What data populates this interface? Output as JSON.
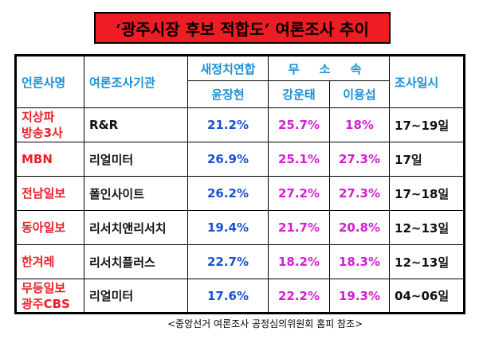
{
  "title": "‘광주시장 후보 적합도’ 여론조사 추이",
  "headers": {
    "outlet": "언론사명",
    "agency": "여론조사기관",
    "party_coalition": "새정치연합",
    "independent": "무 소 속",
    "date": "조사일시",
    "candidate_yoon": "윤장현",
    "candidate_kang": "강운태",
    "candidate_lee": "이용섭"
  },
  "source": "<중앙선거 여론조사 공정심의위원회 홈피 참조>",
  "colors": {
    "title_bg": "#ee1c24",
    "header_text": "#1a8fd6",
    "outlet_text": "#e8202a",
    "yoon_text": "#1c4fd0",
    "independent_text": "#d21fd2"
  },
  "chart_data": {
    "type": "table",
    "title": "‘광주시장 후보 적합도’ 여론조사 추이",
    "columns": [
      "언론사명",
      "여론조사기관",
      "윤장현",
      "강운태",
      "이용섭",
      "조사일시"
    ],
    "rows": [
      {
        "outlet": "지상파 방송3사",
        "agency": "R&R",
        "yoon": "21.2%",
        "kang": "25.7%",
        "lee": "18%",
        "date": "17~19일"
      },
      {
        "outlet": "MBN",
        "agency": "리얼미터",
        "yoon": "26.9%",
        "kang": "25.1%",
        "lee": "27.3%",
        "date": "17일"
      },
      {
        "outlet": "전남일보",
        "agency": "폴인사이트",
        "yoon": "26.2%",
        "kang": "27.2%",
        "lee": "27.3%",
        "date": "17~18일"
      },
      {
        "outlet": "동아일보",
        "agency": "리서치앤리서치",
        "yoon": "19.4%",
        "kang": "21.7%",
        "lee": "20.8%",
        "date": "12~13일"
      },
      {
        "outlet": "한겨레",
        "agency": "리서치플러스",
        "yoon": "22.7%",
        "kang": "18.2%",
        "lee": "18.3%",
        "date": "12~13일"
      },
      {
        "outlet": "무등일보 광주CBS",
        "agency": "리얼미터",
        "yoon": "17.6%",
        "kang": "22.2%",
        "lee": "19.3%",
        "date": "04~06일"
      }
    ]
  }
}
